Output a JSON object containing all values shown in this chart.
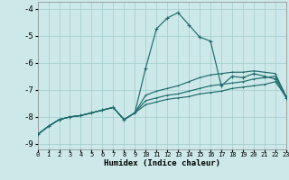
{
  "xlabel": "Humidex (Indice chaleur)",
  "bg_color": "#cde8e8",
  "grid_color": "#a0cccc",
  "line_color": "#1f6b6b",
  "xlim": [
    0,
    23
  ],
  "ylim": [
    -9.2,
    -3.75
  ],
  "yticks": [
    -9,
    -8,
    -7,
    -6,
    -5,
    -4
  ],
  "xticks": [
    0,
    1,
    2,
    3,
    4,
    5,
    6,
    7,
    8,
    9,
    10,
    11,
    12,
    13,
    14,
    15,
    16,
    17,
    18,
    19,
    20,
    21,
    22,
    23
  ],
  "curve1_x": [
    0,
    1,
    2,
    3,
    4,
    5,
    6,
    7,
    8,
    9,
    10,
    11,
    12,
    13,
    14,
    15,
    16,
    17,
    18,
    19,
    20,
    21,
    22,
    23
  ],
  "curve1_y": [
    -8.65,
    -8.35,
    -8.1,
    -8.0,
    -7.95,
    -7.85,
    -7.75,
    -7.65,
    -8.1,
    -7.85,
    -6.2,
    -4.75,
    -4.35,
    -4.15,
    -4.6,
    -5.05,
    -5.2,
    -6.85,
    -6.5,
    -6.55,
    -6.4,
    -6.5,
    -6.6,
    -7.3
  ],
  "curve2_x": [
    0,
    1,
    2,
    3,
    4,
    5,
    6,
    7,
    8,
    9,
    10,
    11,
    12,
    13,
    14,
    15,
    16,
    17,
    18,
    19,
    20,
    21,
    22,
    23
  ],
  "curve2_y": [
    -8.65,
    -8.35,
    -8.1,
    -8.0,
    -7.95,
    -7.85,
    -7.75,
    -7.65,
    -8.1,
    -7.85,
    -7.55,
    -7.45,
    -7.35,
    -7.3,
    -7.25,
    -7.15,
    -7.1,
    -7.05,
    -6.95,
    -6.9,
    -6.85,
    -6.8,
    -6.7,
    -7.25
  ],
  "curve3_x": [
    0,
    1,
    2,
    3,
    4,
    5,
    6,
    7,
    8,
    9,
    10,
    11,
    12,
    13,
    14,
    15,
    16,
    17,
    18,
    19,
    20,
    21,
    22,
    23
  ],
  "curve3_y": [
    -8.65,
    -8.35,
    -8.1,
    -8.0,
    -7.95,
    -7.85,
    -7.75,
    -7.65,
    -8.1,
    -7.85,
    -7.4,
    -7.3,
    -7.2,
    -7.15,
    -7.05,
    -6.95,
    -6.85,
    -6.8,
    -6.75,
    -6.7,
    -6.6,
    -6.55,
    -6.5,
    -7.25
  ],
  "curve4_x": [
    0,
    1,
    2,
    3,
    4,
    5,
    6,
    7,
    8,
    9,
    10,
    11,
    12,
    13,
    14,
    15,
    16,
    17,
    18,
    19,
    20,
    21,
    22,
    23
  ],
  "curve4_y": [
    -8.65,
    -8.35,
    -8.1,
    -8.0,
    -7.95,
    -7.85,
    -7.75,
    -7.65,
    -8.1,
    -7.85,
    -7.2,
    -7.05,
    -6.95,
    -6.85,
    -6.7,
    -6.55,
    -6.45,
    -6.4,
    -6.35,
    -6.35,
    -6.3,
    -6.35,
    -6.4,
    -7.25
  ]
}
